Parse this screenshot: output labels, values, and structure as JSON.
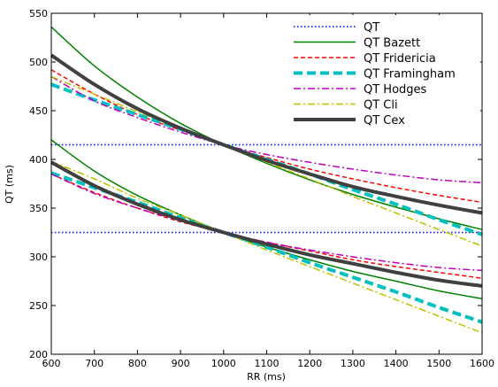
{
  "chart_data": {
    "type": "line",
    "xlabel": "RR (ms)",
    "ylabel": "QT (ms)",
    "xlim": [
      600,
      1600
    ],
    "ylim": [
      200,
      550
    ],
    "xticks": [
      600,
      700,
      800,
      900,
      1000,
      1100,
      1200,
      1300,
      1400,
      1500,
      1600
    ],
    "yticks": [
      200,
      250,
      300,
      350,
      400,
      450,
      500,
      550
    ],
    "grid": false,
    "legend_position": "top-right",
    "x": [
      600,
      700,
      800,
      900,
      1000,
      1100,
      1200,
      1300,
      1400,
      1500,
      1600
    ],
    "series": [
      {
        "name": "QT",
        "color": "#0000ff",
        "dash": "dotted",
        "width": 1.5,
        "curves": [
          [
            415,
            415,
            415,
            415,
            415,
            415,
            415,
            415,
            415,
            415,
            415
          ],
          [
            325,
            325,
            325,
            325,
            325,
            325,
            325,
            325,
            325,
            325,
            325
          ]
        ]
      },
      {
        "name": "QT Bazett",
        "color": "#008000",
        "dash": "solid",
        "width": 1.5,
        "curves": [
          [
            536,
            496,
            464,
            437,
            415,
            396,
            379,
            364,
            351,
            339,
            328
          ],
          [
            420,
            388,
            363,
            343,
            325,
            310,
            297,
            285,
            275,
            265,
            257
          ]
        ]
      },
      {
        "name": "QT Fridericia",
        "color": "#ff0000",
        "dash": "dashed",
        "width": 1.5,
        "curves": [
          [
            492,
            467,
            446,
            430,
            415,
            402,
            390,
            380,
            371,
            363,
            356
          ],
          [
            385,
            366,
            350,
            336,
            325,
            315,
            306,
            297,
            290,
            284,
            278
          ]
        ]
      },
      {
        "name": "QT Framingham",
        "color": "#00bfbf",
        "dash": "longdash",
        "width": 4,
        "curves": [
          [
            477,
            461,
            446,
            431,
            415,
            400,
            385,
            369,
            354,
            338,
            323
          ],
          [
            386,
            371,
            356,
            340,
            325,
            310,
            294,
            279,
            264,
            248,
            233
          ]
        ]
      },
      {
        "name": "QT Hodges",
        "color": "#bf00bf",
        "dash": "dashdot",
        "width": 1.5,
        "curves": [
          [
            485,
            460,
            443,
            428,
            415,
            405,
            397,
            390,
            384,
            379,
            376
          ],
          [
            385,
            365,
            350,
            337,
            325,
            315,
            307,
            300,
            294,
            289,
            286
          ]
        ]
      },
      {
        "name": "QT Cli",
        "color": "#bfbf00",
        "dash": "dashdot",
        "width": 1.5,
        "curves": [
          [
            485,
            467,
            449,
            432,
            415,
            397,
            380,
            362,
            345,
            328,
            311
          ],
          [
            398,
            380,
            360,
            343,
            325,
            307,
            290,
            273,
            256,
            239,
            222
          ]
        ]
      },
      {
        "name": "QT Cex",
        "color": "#404040",
        "dash": "solid",
        "width": 4,
        "curves": [
          [
            507,
            477,
            452,
            432,
            415,
            399,
            385,
            372,
            362,
            353,
            345
          ],
          [
            397,
            373,
            354,
            338,
            325,
            313,
            302,
            293,
            284,
            276,
            270
          ]
        ]
      }
    ]
  }
}
